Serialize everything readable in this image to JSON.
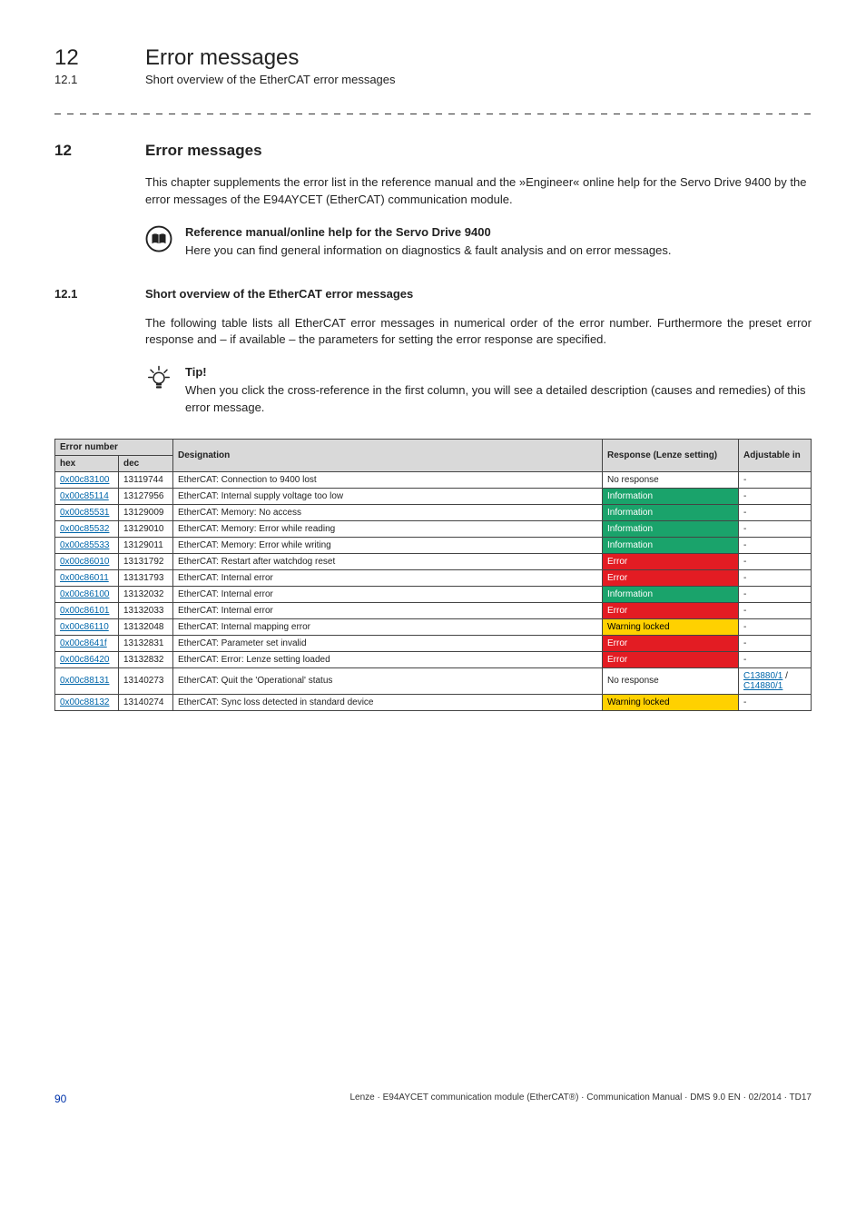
{
  "header": {
    "chapter_num": "12",
    "chapter_title": "Error messages",
    "sub_num": "12.1",
    "sub_title": "Short overview of the EtherCAT error messages"
  },
  "section": {
    "num": "12",
    "title": "Error messages",
    "intro": "This chapter supplements the error list in the reference manual and the »Engineer« online help for the Servo Drive 9400 by the error messages of the E94AYCET (EtherCAT) communication module."
  },
  "refbox": {
    "title": "Reference manual/online help for the Servo Drive 9400",
    "text": "Here you can find general information on diagnostics & fault analysis and on error messages."
  },
  "sub": {
    "num": "12.1",
    "title": "Short overview of the EtherCAT error messages",
    "para": "The following table lists all EtherCAT error messages in numerical order of the error number. Furthermore the preset error response and – if available – the parameters for setting the error response are specified."
  },
  "tip": {
    "title": "Tip!",
    "text": "When you click the cross-reference in the first column, you will see a detailed description (causes and remedies) of this error message."
  },
  "table": {
    "head": {
      "errnum": "Error number",
      "hex": "hex",
      "dec": "dec",
      "designation": "Designation",
      "response": "Response (Lenze setting)",
      "adjustable": "Adjustable in"
    },
    "rows": [
      {
        "hex": "0x00c83100",
        "dec": "13119744",
        "des": "EtherCAT: Connection to 9400 lost",
        "resp": "No response",
        "resp_cls": "",
        "adj": "-",
        "adj_link": false
      },
      {
        "hex": "0x00c85114",
        "dec": "13127956",
        "des": "EtherCAT: Internal supply voltage too low",
        "resp": "Information",
        "resp_cls": "cell-info",
        "adj": "-",
        "adj_link": false
      },
      {
        "hex": "0x00c85531",
        "dec": "13129009",
        "des": "EtherCAT: Memory: No access",
        "resp": "Information",
        "resp_cls": "cell-info",
        "adj": "-",
        "adj_link": false
      },
      {
        "hex": "0x00c85532",
        "dec": "13129010",
        "des": "EtherCAT: Memory: Error while reading",
        "resp": "Information",
        "resp_cls": "cell-info",
        "adj": "-",
        "adj_link": false
      },
      {
        "hex": "0x00c85533",
        "dec": "13129011",
        "des": "EtherCAT: Memory: Error while writing",
        "resp": "Information",
        "resp_cls": "cell-info",
        "adj": "-",
        "adj_link": false
      },
      {
        "hex": "0x00c86010",
        "dec": "13131792",
        "des": "EtherCAT: Restart after watchdog reset",
        "resp": "Error",
        "resp_cls": "cell-error",
        "adj": "-",
        "adj_link": false
      },
      {
        "hex": "0x00c86011",
        "dec": "13131793",
        "des": "EtherCAT: Internal error",
        "resp": "Error",
        "resp_cls": "cell-error",
        "adj": "-",
        "adj_link": false
      },
      {
        "hex": "0x00c86100",
        "dec": "13132032",
        "des": "EtherCAT: Internal error",
        "resp": "Information",
        "resp_cls": "cell-info",
        "adj": "-",
        "adj_link": false
      },
      {
        "hex": "0x00c86101",
        "dec": "13132033",
        "des": "EtherCAT: Internal error",
        "resp": "Error",
        "resp_cls": "cell-error",
        "adj": "-",
        "adj_link": false
      },
      {
        "hex": "0x00c86110",
        "dec": "13132048",
        "des": "EtherCAT: Internal mapping error",
        "resp": "Warning locked",
        "resp_cls": "cell-warn",
        "adj": "-",
        "adj_link": false
      },
      {
        "hex": "0x00c8641f",
        "dec": "13132831",
        "des": "EtherCAT: Parameter set invalid",
        "resp": "Error",
        "resp_cls": "cell-error",
        "adj": "-",
        "adj_link": false
      },
      {
        "hex": "0x00c86420",
        "dec": "13132832",
        "des": "EtherCAT: Error: Lenze setting loaded",
        "resp": "Error",
        "resp_cls": "cell-error",
        "adj": "-",
        "adj_link": false
      },
      {
        "hex": "0x00c88131",
        "dec": "13140273",
        "des": "EtherCAT: Quit the 'Operational' status",
        "resp": "No response",
        "resp_cls": "",
        "adj": "C13880/1 / C14880/1",
        "adj_link": true
      },
      {
        "hex": "0x00c88132",
        "dec": "13140274",
        "des": "EtherCAT: Sync loss detected in standard device",
        "resp": "Warning locked",
        "resp_cls": "cell-warn",
        "adj": "-",
        "adj_link": false
      }
    ],
    "col_widths": [
      "70px",
      "60px",
      "auto",
      "150px",
      "80px"
    ]
  },
  "footer": {
    "page": "90",
    "text": "Lenze · E94AYCET communication module (EtherCAT®) · Communication Manual · DMS 9.0 EN · 02/2014 · TD17"
  }
}
